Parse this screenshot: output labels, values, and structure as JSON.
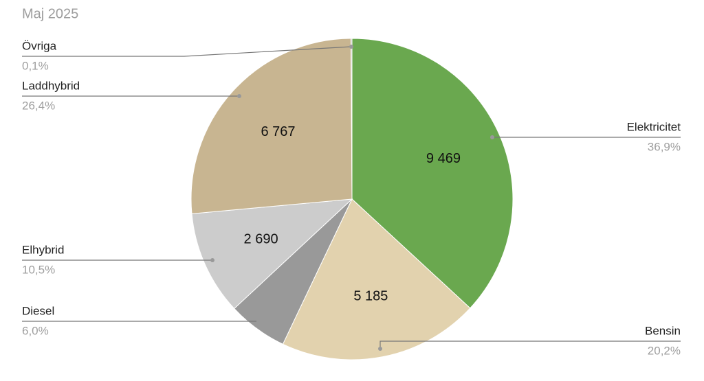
{
  "chart_data": {
    "type": "pie",
    "title": "Maj 2025",
    "categories": [
      "Elektricitet",
      "Bensin",
      "Diesel",
      "Elhybrid",
      "Laddhybrid",
      "Övriga"
    ],
    "values": [
      9469,
      5185,
      1540,
      2690,
      6767,
      26
    ],
    "value_labels": [
      "9 469",
      "5 185",
      null,
      "2 690",
      "6 767",
      null
    ],
    "percent_labels": [
      "36,9%",
      "20,2%",
      "6,0%",
      "10,5%",
      "26,4%",
      "0,1%"
    ],
    "colors": [
      "#6aa84f",
      "#e2d2ae",
      "#999999",
      "#cccccc",
      "#c8b591",
      "#b0b0b0"
    ]
  }
}
